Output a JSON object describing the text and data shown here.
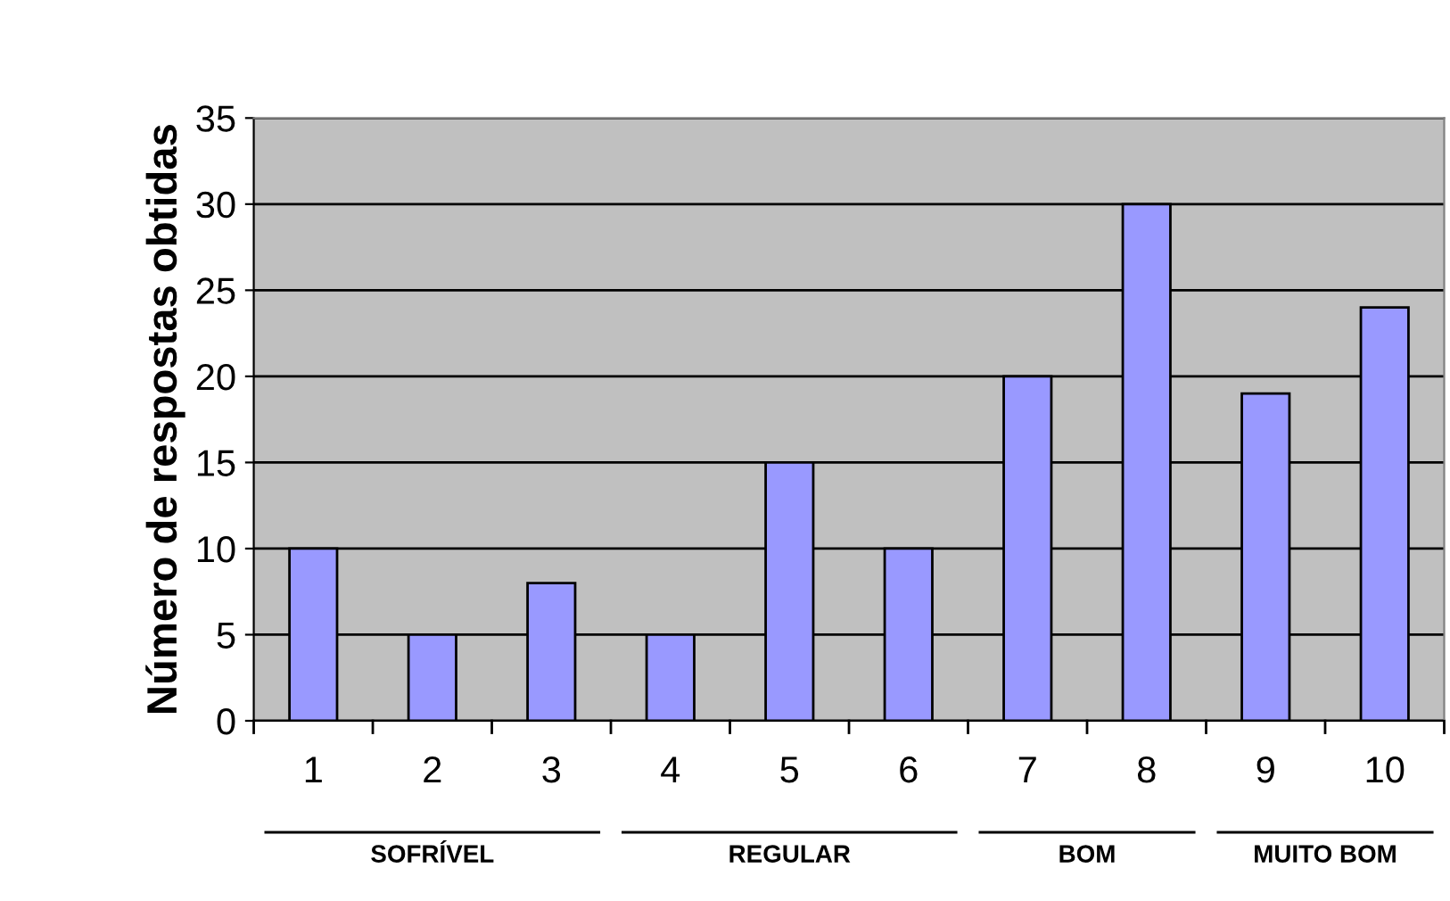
{
  "chart_data": {
    "type": "bar",
    "ylabel": "Número de respostas obtidas",
    "categories": [
      "1",
      "2",
      "3",
      "4",
      "5",
      "6",
      "7",
      "8",
      "9",
      "10"
    ],
    "values": [
      10,
      5,
      8,
      5,
      15,
      10,
      20,
      30,
      19,
      24
    ],
    "color": "#9999ff",
    "ylim": [
      0,
      35
    ],
    "yticks": [
      0,
      5,
      10,
      15,
      20,
      25,
      30,
      35
    ],
    "grid": "y",
    "annotations": [
      "SOFRÍVEL",
      "REGULAR",
      "BOM",
      "MUITO BOM"
    ]
  }
}
